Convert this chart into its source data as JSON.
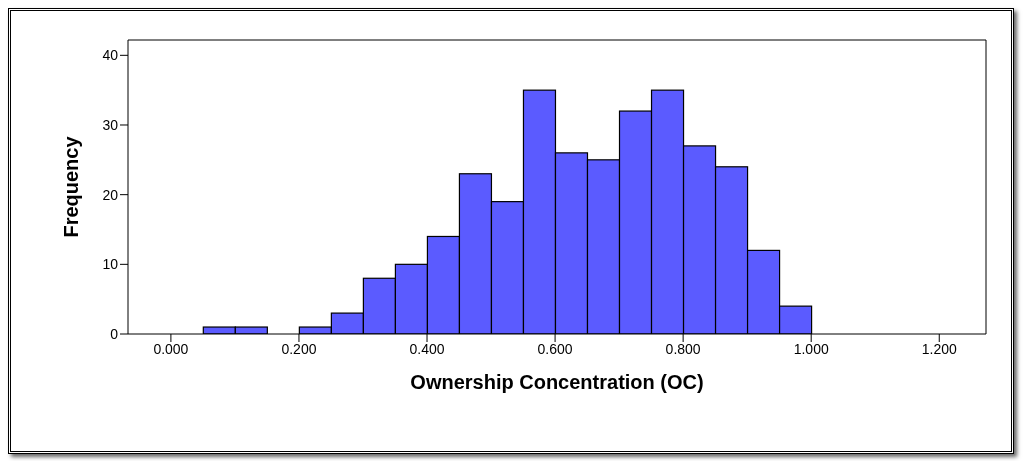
{
  "chart_data": {
    "type": "histogram",
    "xlabel": "Ownership Concentration (OC)",
    "ylabel": "Frequency",
    "bins": [
      0.05,
      0.1,
      0.15,
      0.2,
      0.25,
      0.3,
      0.35,
      0.4,
      0.45,
      0.5,
      0.55,
      0.6,
      0.65,
      0.7,
      0.75,
      0.8,
      0.85,
      0.9,
      0.95,
      1.0
    ],
    "values": [
      1,
      1,
      0,
      1,
      3,
      8,
      10,
      14,
      23,
      19,
      35,
      26,
      25,
      32,
      35,
      27,
      24,
      12,
      4
    ],
    "color": "#5b5bff",
    "xlim": [
      -0.067,
      1.273
    ],
    "xticks": [
      {
        "value": 0,
        "label": "0.000"
      },
      {
        "value": 0.2,
        "label": "0.200"
      },
      {
        "value": 0.4,
        "label": "0.400"
      },
      {
        "value": 0.6,
        "label": "0.600"
      },
      {
        "value": 0.8,
        "label": "0.800"
      },
      {
        "value": 1.0,
        "label": "1.000"
      },
      {
        "value": 1.2,
        "label": "1.200"
      }
    ],
    "ylim": [
      0,
      42.2
    ],
    "yticks": [
      0,
      10,
      20,
      30,
      40
    ],
    "grid": false,
    "legend": false
  }
}
